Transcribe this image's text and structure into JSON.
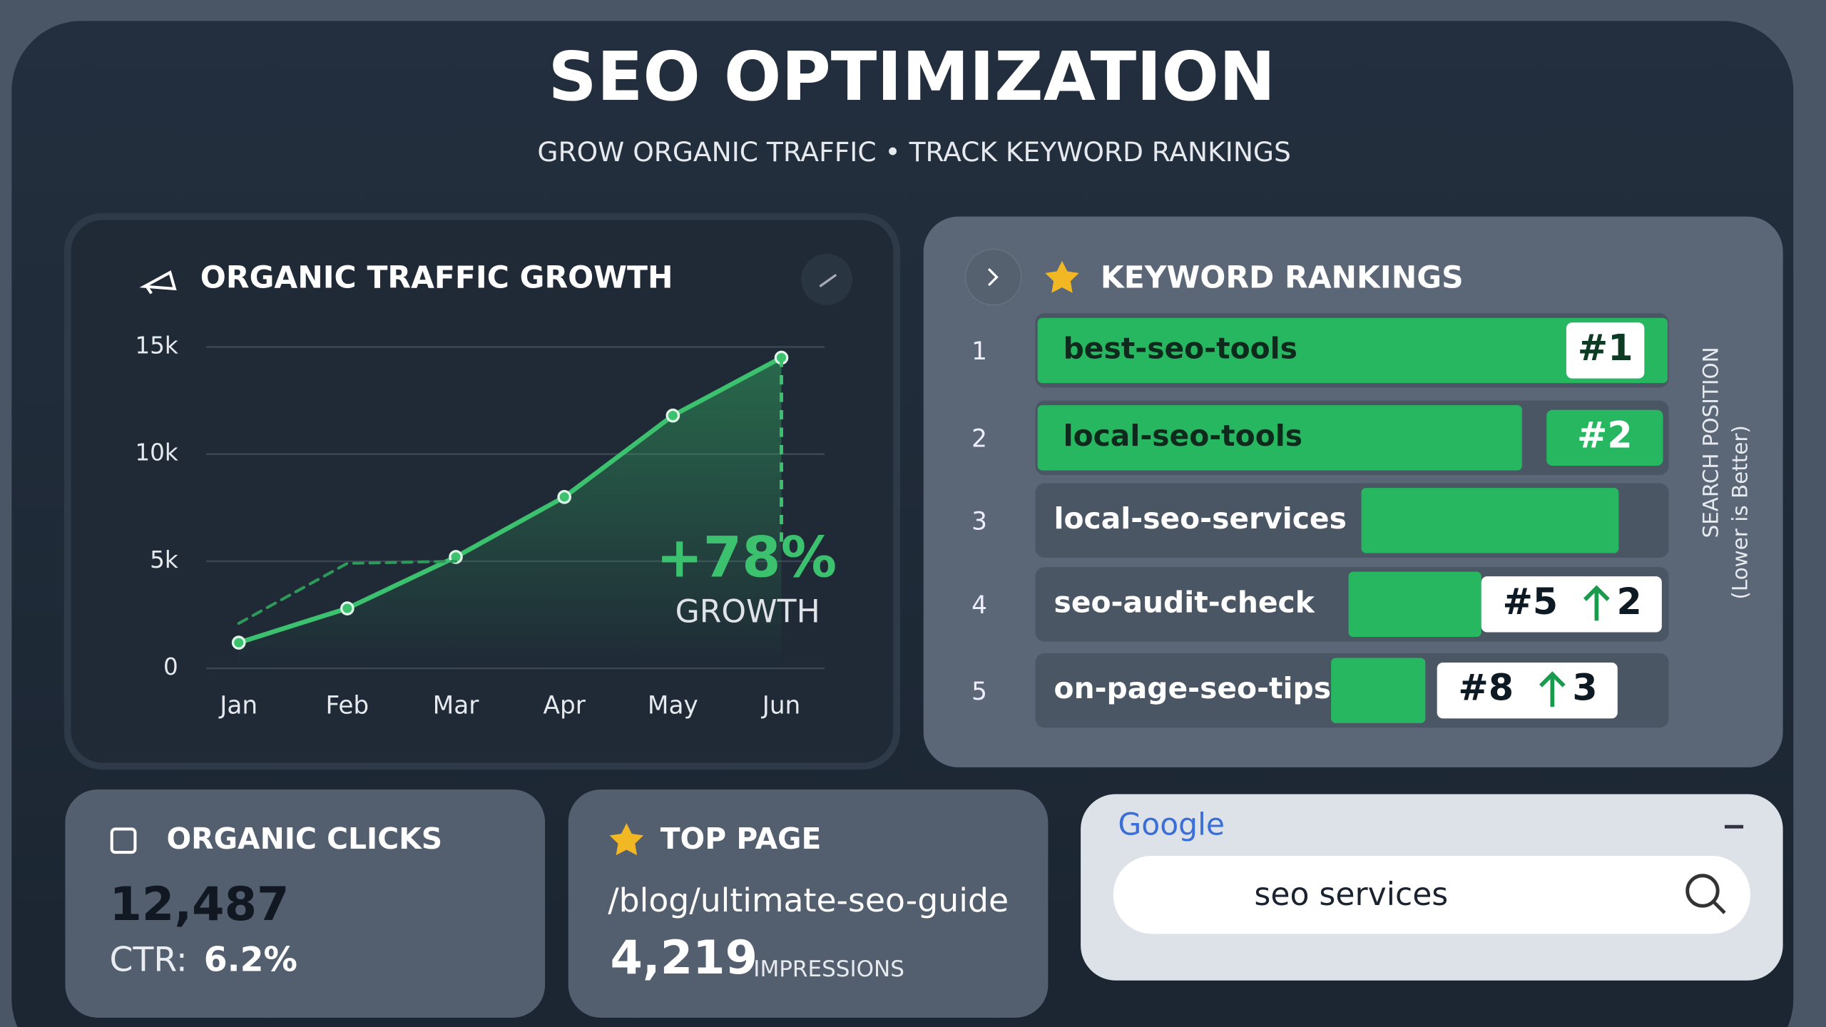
{
  "header": {
    "title": "SEO OPTIMIZATION",
    "subtitle": "GROW ORGANIC TRAFFIC • TRACK KEYWORD RANKINGS"
  },
  "chart_data": {
    "type": "line",
    "title": "ORGANIC TRAFFIC GROWTH",
    "categories": [
      "Jan",
      "Feb",
      "Mar",
      "Apr",
      "May",
      "Jun"
    ],
    "series": [
      {
        "color": "#3cc26e",
        "values": [
          1200,
          2800,
          5200,
          8000,
          11800,
          14500
        ]
      },
      {
        "color": "#2e9a5a",
        "values": [
          2100,
          4900,
          5000,
          null,
          null,
          null
        ]
      }
    ],
    "ylim": [
      0,
      15000
    ],
    "yticks": [
      0,
      {
        "value": 5000,
        "label": "5k"
      },
      {
        "value": 10000,
        "label": "10k"
      },
      {
        "value": 15000,
        "label": "15k"
      }
    ],
    "grid": true,
    "annotation": "+78%",
    "annotation_caption": "GROWTH"
  },
  "keyword_rankings": {
    "title": "KEYWORD RANKINGS",
    "axis_label": "SEARCH POSITION",
    "axis_note": "(Lower is Better)",
    "rows": [
      {
        "index": "1",
        "keyword": "best-seo-tools",
        "rank": "#1"
      },
      {
        "index": "2",
        "keyword": "local-seo-tools",
        "rank": "#2"
      },
      {
        "index": "3",
        "keyword": "local-seo-services"
      },
      {
        "index": "4",
        "keyword": "seo-audit-check",
        "rank": "#5",
        "change": "2"
      },
      {
        "index": "5",
        "keyword": "on-page-seo-tips",
        "rank": "#8",
        "change": "3"
      }
    ]
  },
  "organic_clicks": {
    "title": "ORGANIC CLICKS",
    "value": "12,487",
    "ctr_label": "CTR:",
    "ctr": "6.2%"
  },
  "top_page": {
    "title": "TOP PAGE",
    "path": "/blog/ultimate-seo-guide",
    "impressions": "4,219",
    "impressions_label": "IMPRESSIONS"
  },
  "search": {
    "brand": "Google",
    "query": "seo services"
  }
}
